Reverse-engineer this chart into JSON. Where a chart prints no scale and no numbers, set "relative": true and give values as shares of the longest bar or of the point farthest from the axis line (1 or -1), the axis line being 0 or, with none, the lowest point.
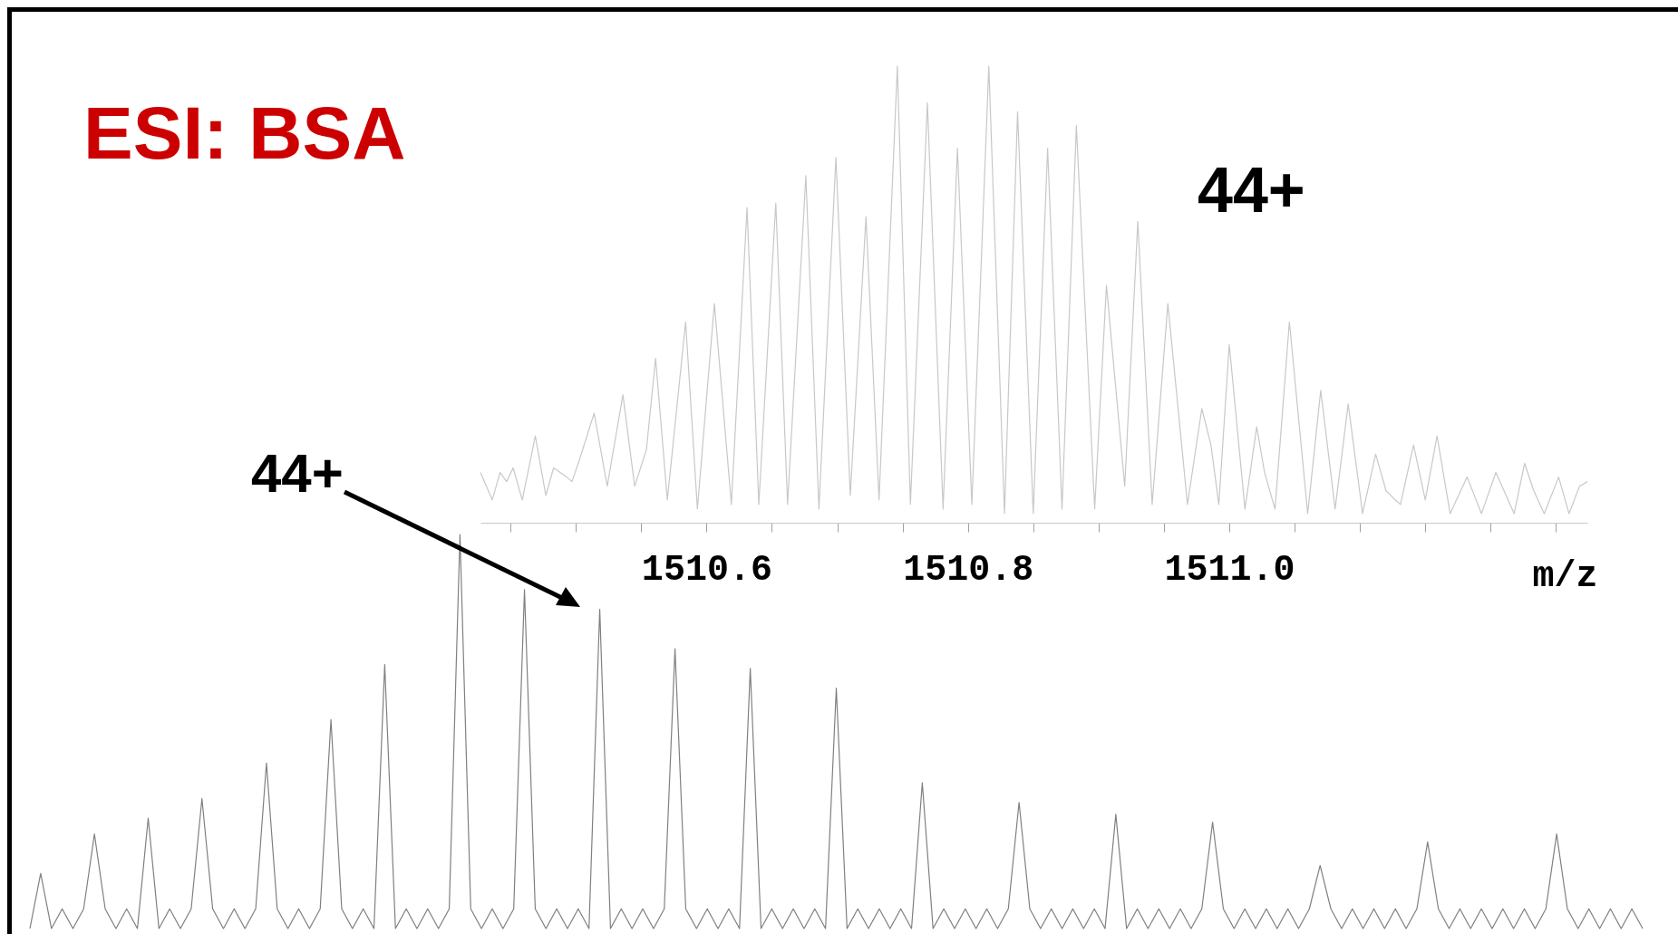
{
  "chart_data": [
    {
      "type": "line",
      "title": "ESI: BSA",
      "relative": true,
      "tick_labels": false,
      "annotations": [
        "44+"
      ],
      "categories": [
        null,
        null,
        null,
        null,
        null,
        null,
        null,
        null,
        null,
        null,
        null,
        null,
        null,
        null,
        null,
        null,
        null,
        null,
        null,
        null,
        null,
        null,
        null,
        null,
        null,
        null,
        null,
        null,
        null,
        null,
        null,
        null,
        null,
        null,
        null,
        null,
        null,
        null,
        null,
        null,
        null,
        null,
        null,
        null,
        null,
        null,
        null,
        null,
        null,
        null,
        null,
        null,
        null,
        null,
        null,
        null,
        null,
        null,
        null,
        null,
        null,
        null,
        null,
        null,
        null,
        null,
        null,
        null,
        null,
        null,
        null,
        null,
        null,
        null,
        null,
        null,
        null,
        null,
        null,
        null,
        null,
        null,
        null,
        null,
        null,
        null,
        null,
        null,
        null,
        null,
        null,
        null,
        null,
        null,
        null,
        null,
        null,
        null,
        null,
        null,
        null,
        null,
        null,
        null,
        null,
        null,
        null,
        null,
        null,
        null,
        null,
        null,
        null,
        null,
        null,
        null,
        null,
        null,
        null,
        null,
        null,
        null,
        null,
        null,
        null,
        null,
        null,
        null,
        null,
        null,
        null,
        null,
        null,
        null,
        null,
        null,
        null,
        null,
        null,
        null,
        null,
        null,
        null,
        null,
        null,
        null,
        null,
        null,
        null,
        null,
        null
      ],
      "series": [
        {
          "color": "#808080",
          "values": [
            0,
            0.14,
            0,
            0.05,
            0,
            0.05,
            0.24,
            0.05,
            0,
            0.05,
            0,
            0.28,
            0,
            0.05,
            0,
            0.05,
            0.33,
            0.05,
            0,
            0.05,
            0,
            0.05,
            0.42,
            0.05,
            0,
            0.05,
            0,
            0.05,
            0.53,
            0.05,
            0,
            0.05,
            0,
            0.67,
            0,
            0.05,
            0,
            0.05,
            0,
            0.05,
            1,
            0.05,
            0,
            0.05,
            0,
            0.05,
            0.86,
            0.05,
            0,
            0.05,
            0,
            0.05,
            0,
            0.81,
            0,
            0.05,
            0,
            0.05,
            0,
            0.05,
            0.71,
            0.05,
            0,
            0.05,
            0,
            0.05,
            0,
            0.66,
            0,
            0.05,
            0,
            0.05,
            0,
            0.05,
            0,
            0.61,
            0,
            0.05,
            0,
            0.05,
            0,
            0.05,
            0,
            0.37,
            0,
            0.05,
            0,
            0.05,
            0,
            0.05,
            0,
            0.05,
            0.32,
            0.05,
            0,
            0.05,
            0,
            0.05,
            0,
            0.05,
            0,
            0.29,
            0,
            0.05,
            0,
            0.05,
            0,
            0.05,
            0,
            0.05,
            0.27,
            0.05,
            0,
            0.05,
            0,
            0.05,
            0,
            0.05,
            0,
            0.05,
            0.16,
            0.05,
            0,
            0.05,
            0,
            0.05,
            0,
            0.05,
            0,
            0.05,
            0.22,
            0.05,
            0,
            0.05,
            0,
            0.05,
            0,
            0.05,
            0,
            0.05,
            0,
            0.05,
            0.24,
            0.05,
            0,
            0.05,
            0,
            0.05,
            0,
            0.05,
            0
          ]
        }
      ]
    },
    {
      "type": "line",
      "relative": true,
      "tick_labels": "x",
      "xlabel": "m/z",
      "annotations": [
        "44+"
      ],
      "xlim": [
        1510.427,
        1511.274
      ],
      "xticks": [
        {
          "value": 1510.45,
          "label": null
        },
        {
          "value": 1510.5,
          "label": null
        },
        {
          "value": 1510.55,
          "label": null
        },
        1510.6,
        {
          "value": 1510.65,
          "label": null
        },
        {
          "value": 1510.7,
          "label": null
        },
        {
          "value": 1510.75,
          "label": null
        },
        1510.8,
        {
          "value": 1510.85,
          "label": null
        },
        {
          "value": 1510.9,
          "label": null
        },
        {
          "value": 1510.95,
          "label": null
        },
        {
          "value": 1511,
          "label": "1511.0"
        },
        {
          "value": 1511.05,
          "label": null
        },
        {
          "value": 1511.1,
          "label": null
        },
        {
          "value": 1511.15,
          "label": null
        },
        {
          "value": 1511.2,
          "label": null
        },
        {
          "value": 1511.25,
          "label": null
        }
      ],
      "series": [
        {
          "color": "#c8c8c8",
          "x": [
            1510.427,
            1510.436,
            1510.442,
            1510.447,
            1510.452,
            1510.459,
            1510.469,
            1510.477,
            1510.483,
            1510.493,
            1510.497,
            1510.503,
            1510.514,
            1510.524,
            1510.536,
            1510.545,
            1510.554,
            1510.561,
            1510.57,
            1510.584,
            1510.593,
            1510.606,
            1510.619,
            1510.631,
            1510.64,
            1510.653,
            1510.662,
            1510.676,
            1510.686,
            1510.699,
            1510.71,
            1510.722,
            1510.732,
            1510.746,
            1510.756,
            1510.769,
            1510.781,
            1510.792,
            1510.803,
            1510.816,
            1510.828,
            1510.838,
            1510.85,
            1510.861,
            1510.872,
            1510.883,
            1510.897,
            1510.906,
            1510.92,
            1510.93,
            1510.941,
            1510.953,
            1510.968,
            1510.979,
            1510.986,
            1510.992,
            1511.0,
            1511.012,
            1511.021,
            1511.027,
            1511.035,
            1511.046,
            1511.06,
            1511.07,
            1511.081,
            1511.091,
            1511.102,
            1511.112,
            1511.12,
            1511.127,
            1511.131,
            1511.141,
            1511.15,
            1511.159,
            1511.169,
            1511.182,
            1511.193,
            1511.204,
            1511.218,
            1511.226,
            1511.233,
            1511.241,
            1511.252,
            1511.26,
            1511.268,
            1511.274
          ],
          "values": [
            0.11,
            0.05,
            0.11,
            0.09,
            0.12,
            0.05,
            0.19,
            0.06,
            0.12,
            0.1,
            0.09,
            0.14,
            0.24,
            0.08,
            0.28,
            0.08,
            0.16,
            0.36,
            0.05,
            0.44,
            0.03,
            0.48,
            0.04,
            0.69,
            0.04,
            0.7,
            0.04,
            0.76,
            0.03,
            0.8,
            0.06,
            0.67,
            0.05,
            1,
            0.04,
            0.92,
            0.03,
            0.82,
            0.04,
            1,
            0.02,
            0.9,
            0.02,
            0.82,
            0.03,
            0.87,
            0.03,
            0.52,
            0.08,
            0.66,
            0.04,
            0.48,
            0.04,
            0.25,
            0.17,
            0.04,
            0.39,
            0.03,
            0.21,
            0.11,
            0.03,
            0.44,
            0.02,
            0.29,
            0.03,
            0.26,
            0.02,
            0.15,
            0.07,
            0.05,
            0.04,
            0.17,
            0.05,
            0.19,
            0.02,
            0.1,
            0.02,
            0.11,
            0.02,
            0.13,
            0.07,
            0.02,
            0.1,
            0.02,
            0.08,
            0.09
          ]
        }
      ]
    }
  ]
}
